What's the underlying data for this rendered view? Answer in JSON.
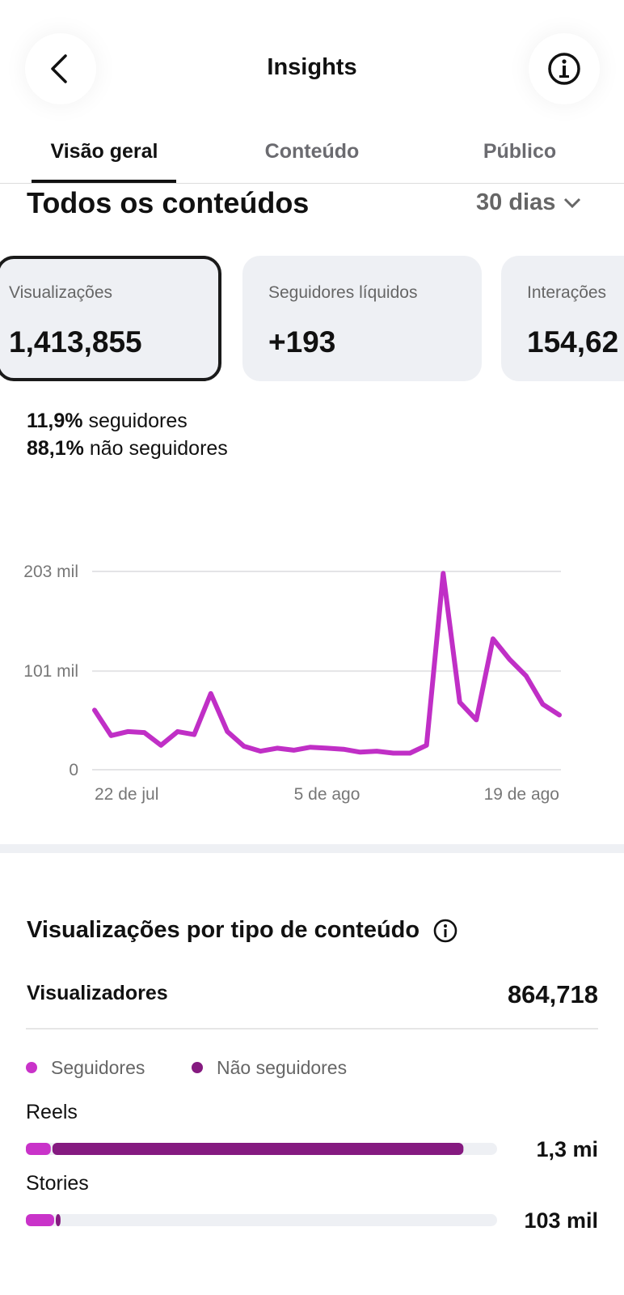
{
  "header": {
    "title": "Insights"
  },
  "tabs": [
    "Visão geral",
    "Conteúdo",
    "Público"
  ],
  "section": {
    "title": "Todos os conteúdos",
    "period": "30 dias"
  },
  "cards": [
    {
      "label": "Visualizações",
      "value": "1,413,855"
    },
    {
      "label": "Seguidores líquidos",
      "value": "+193"
    },
    {
      "label": "Interações",
      "value": "154,62"
    }
  ],
  "split": [
    {
      "percent": "11,9%",
      "label": "seguidores"
    },
    {
      "percent": "88,1%",
      "label": "não seguidores"
    }
  ],
  "chart_data": {
    "type": "line",
    "color": "#c02fc6",
    "categories": [
      "22 de jul",
      null,
      null,
      null,
      null,
      null,
      null,
      null,
      null,
      null,
      null,
      null,
      null,
      null,
      "5 de ago",
      null,
      null,
      null,
      null,
      null,
      null,
      null,
      null,
      null,
      null,
      null,
      null,
      null,
      "19 de ago"
    ],
    "values": [
      61,
      35,
      39,
      38,
      25,
      39,
      36,
      78,
      39,
      24,
      19,
      22,
      20,
      23,
      22,
      21,
      18,
      19,
      17,
      17,
      25,
      201,
      69,
      51,
      134,
      113,
      96,
      67,
      56
    ],
    "ylim": [
      0,
      203
    ],
    "yticks": [
      0,
      {
        "value": 101,
        "label": "101 mil"
      },
      {
        "value": 203,
        "label": "203 mil"
      }
    ],
    "grid": true
  },
  "breakdown": {
    "title": "Visualizações por tipo de conteúdo",
    "viewers_label": "Visualizadores",
    "viewers_value": "864,718",
    "legend": [
      {
        "name": "Seguidores",
        "color": "#c933c9"
      },
      {
        "name": "Não seguidores",
        "color": "#851a80"
      }
    ],
    "xlim": [
      0,
      1400
    ],
    "rows": [
      {
        "name": "Reels",
        "values": [
          74,
          1226
        ],
        "value_label": "1,3 mi"
      },
      {
        "name": "Stories",
        "values": [
          84,
          19
        ],
        "value_label": "103 mil"
      }
    ]
  }
}
